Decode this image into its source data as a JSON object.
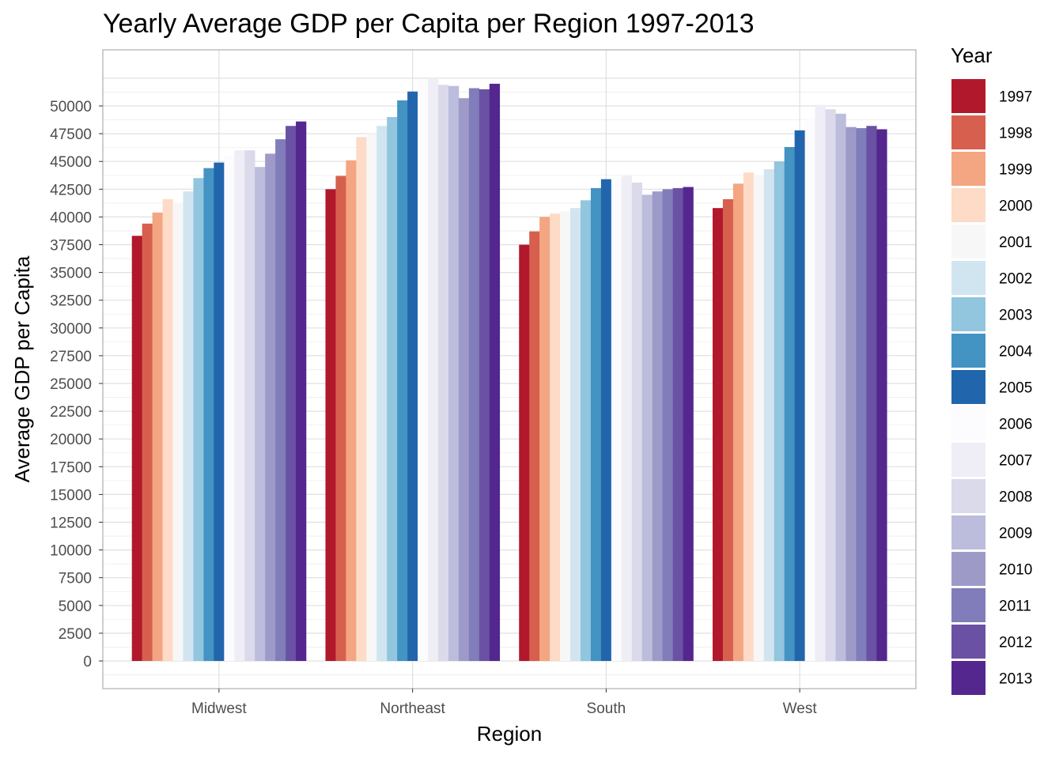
{
  "chart_data": {
    "type": "bar",
    "title": "Yearly Average GDP per Capita per Region 1997-2013",
    "xlabel": "Region",
    "ylabel": "Average GDP per Capita",
    "ylim": [
      -2500,
      52500
    ],
    "ytick_step": 2500,
    "yticks": [
      "0",
      "2500",
      "5000",
      "7500",
      "10000",
      "12500",
      "15000",
      "17500",
      "20000",
      "22500",
      "25000",
      "27500",
      "30000",
      "32500",
      "35000",
      "37500",
      "40000",
      "42500",
      "45000",
      "47500",
      "50000"
    ],
    "categories": [
      "Midwest",
      "Northeast",
      "South",
      "West"
    ],
    "grid": true,
    "legend_title": "Year",
    "legend_placement": "right",
    "series": [
      {
        "name": "1997",
        "color": "#b2182b",
        "values": [
          38300,
          42500,
          37500,
          40800
        ]
      },
      {
        "name": "1998",
        "color": "#d6604d",
        "values": [
          39400,
          43700,
          38700,
          41600
        ]
      },
      {
        "name": "1999",
        "color": "#f4a582",
        "values": [
          40400,
          45100,
          40000,
          43000
        ]
      },
      {
        "name": "2000",
        "color": "#fddbc7",
        "values": [
          41600,
          47200,
          40300,
          44000
        ]
      },
      {
        "name": "2001",
        "color": "#f7f7f7",
        "values": [
          41300,
          47500,
          40500,
          43800
        ]
      },
      {
        "name": "2002",
        "color": "#d1e5f0",
        "values": [
          42300,
          48200,
          40800,
          44300
        ]
      },
      {
        "name": "2003",
        "color": "#92c5de",
        "values": [
          43500,
          49000,
          41500,
          45000
        ]
      },
      {
        "name": "2004",
        "color": "#4393c3",
        "values": [
          44400,
          50500,
          42600,
          46300
        ]
      },
      {
        "name": "2005",
        "color": "#2166ac",
        "values": [
          44900,
          51300,
          43400,
          47800
        ]
      },
      {
        "name": "2006",
        "color": "#fcfbfd",
        "values": [
          45500,
          52400,
          43500,
          48900
        ]
      },
      {
        "name": "2007",
        "color": "#efedf5",
        "values": [
          46000,
          52500,
          43700,
          50100
        ]
      },
      {
        "name": "2008",
        "color": "#dadaeb",
        "values": [
          46000,
          51900,
          43100,
          49700
        ]
      },
      {
        "name": "2009",
        "color": "#bcbddc",
        "values": [
          44500,
          51800,
          42000,
          49300
        ]
      },
      {
        "name": "2010",
        "color": "#9e9ac8",
        "values": [
          45700,
          50700,
          42300,
          48100
        ]
      },
      {
        "name": "2011",
        "color": "#807dba",
        "values": [
          47000,
          51600,
          42500,
          48000
        ]
      },
      {
        "name": "2012",
        "color": "#6a51a3",
        "values": [
          48200,
          51500,
          42600,
          48200
        ]
      },
      {
        "name": "2013",
        "color": "#54278f",
        "values": [
          48600,
          52000,
          42700,
          47900
        ]
      }
    ]
  }
}
